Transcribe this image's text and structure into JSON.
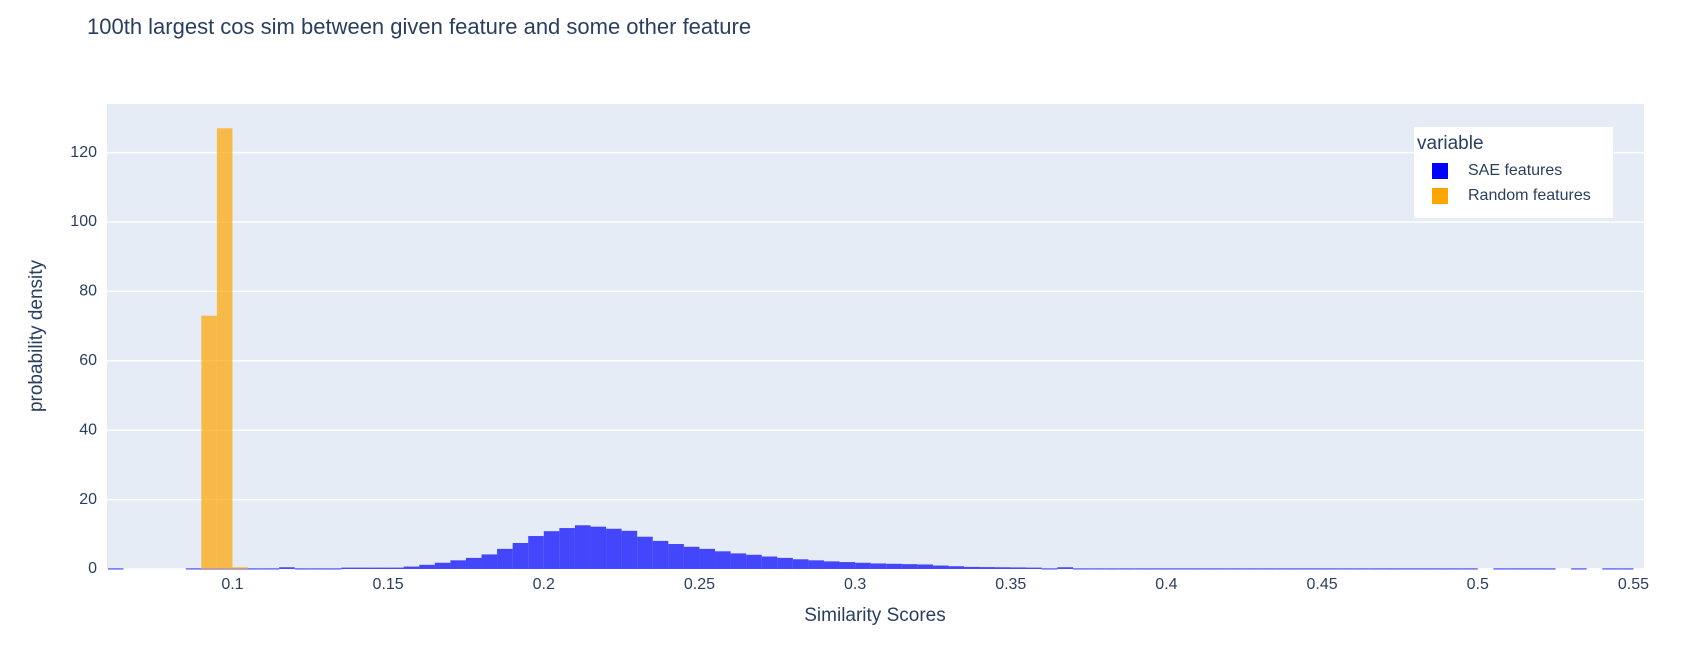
{
  "chart_data": {
    "type": "histogram",
    "title": "100th largest cos sim between given feature and some other feature",
    "x_label": "Similarity Scores",
    "y_label": "probability density",
    "legend_title": "variable",
    "legend_position": "top-right",
    "grid": true,
    "xlim": [
      0.0597,
      0.5534
    ],
    "ylim": [
      0,
      134
    ],
    "xticks": [
      0.1,
      0.15,
      0.2,
      0.25,
      0.3,
      0.35,
      0.4,
      0.45,
      0.5,
      0.55
    ],
    "yticks": [
      0,
      20,
      40,
      60,
      80,
      100,
      120
    ],
    "series": [
      {
        "name": "SAE features",
        "color": "#0000ff",
        "bins": [
          0.06,
          0.065,
          0.07,
          0.075,
          0.08,
          0.085,
          0.09,
          0.095,
          0.1,
          0.105,
          0.11,
          0.115,
          0.12,
          0.125,
          0.13,
          0.135,
          0.14,
          0.145,
          0.15,
          0.155,
          0.16,
          0.165,
          0.17,
          0.175,
          0.18,
          0.185,
          0.19,
          0.195,
          0.2,
          0.205,
          0.21,
          0.215,
          0.22,
          0.225,
          0.23,
          0.235,
          0.24,
          0.245,
          0.25,
          0.255,
          0.26,
          0.265,
          0.27,
          0.275,
          0.28,
          0.285,
          0.29,
          0.295,
          0.3,
          0.305,
          0.31,
          0.315,
          0.32,
          0.325,
          0.33,
          0.335,
          0.34,
          0.345,
          0.35,
          0.355,
          0.36,
          0.365,
          0.37,
          0.375,
          0.38,
          0.385,
          0.39,
          0.395,
          0.4,
          0.405,
          0.41,
          0.415,
          0.42,
          0.425,
          0.43,
          0.435,
          0.44,
          0.445,
          0.45,
          0.455,
          0.46,
          0.465,
          0.47,
          0.475,
          0.48,
          0.485,
          0.49,
          0.495,
          0.5,
          0.505,
          0.51,
          0.515,
          0.52,
          0.525,
          0.53,
          0.535,
          0.54,
          0.545,
          0.55
        ],
        "values": [
          0.2,
          0,
          0,
          0,
          0,
          0.2,
          0.2,
          0.2,
          0.2,
          0.2,
          0.2,
          0.5,
          0.2,
          0.2,
          0.2,
          0.4,
          0.4,
          0.4,
          0.4,
          0.7,
          1.2,
          1.8,
          2.5,
          3.2,
          4.2,
          5.8,
          7.5,
          9.5,
          10.9,
          11.8,
          12.6,
          12.2,
          11.6,
          11,
          9.3,
          8.1,
          7.2,
          6.4,
          5.8,
          5.1,
          4.5,
          4.1,
          3.6,
          3.2,
          2.8,
          2.5,
          2.2,
          2.0,
          1.8,
          1.6,
          1.5,
          1.4,
          1.3,
          1.0,
          0.8,
          0.6,
          0.55,
          0.5,
          0.45,
          0.4,
          0.2,
          0.5,
          0.2,
          0.2,
          0.2,
          0.2,
          0.2,
          0.2,
          0.2,
          0.2,
          0.2,
          0.2,
          0.2,
          0.2,
          0.2,
          0.2,
          0.2,
          0.2,
          0.2,
          0.2,
          0.2,
          0.2,
          0.2,
          0.2,
          0.2,
          0.2,
          0.2,
          0.2,
          0,
          0.2,
          0.2,
          0.2,
          0.2,
          0,
          0.2,
          0,
          0.2,
          0.2
        ]
      },
      {
        "name": "Random features",
        "color": "#ffa500",
        "bins": [
          0.09,
          0.095,
          0.1,
          0.105
        ],
        "values": [
          73,
          127,
          0.5
        ]
      }
    ]
  }
}
